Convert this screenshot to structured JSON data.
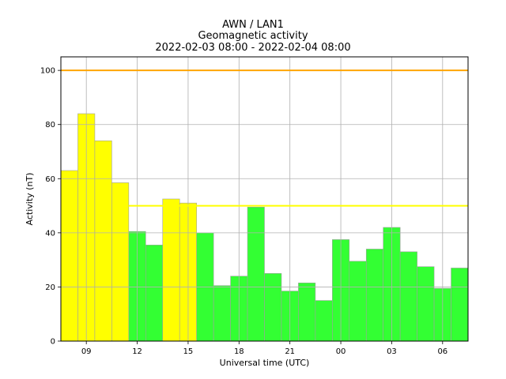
{
  "chart_data": {
    "type": "bar",
    "title": "AWN / LAN1",
    "subtitle": "Geomagnetic activity",
    "date_range": "2022-02-03 08:00 - 2022-02-04 08:00",
    "xlabel": "Universal time (UTC)",
    "ylabel": "Activity (nT)",
    "ylim": [
      0,
      105
    ],
    "yticks": [
      0,
      20,
      40,
      60,
      80,
      100
    ],
    "hours": [
      "08",
      "09",
      "10",
      "11",
      "12",
      "13",
      "14",
      "15",
      "16",
      "17",
      "18",
      "19",
      "20",
      "21",
      "22",
      "23",
      "00",
      "01",
      "02",
      "03",
      "04",
      "05",
      "06",
      "07"
    ],
    "xtick_labels": [
      "09",
      "12",
      "15",
      "18",
      "21",
      "00",
      "03",
      "06"
    ],
    "values": [
      63,
      84,
      74,
      58.5,
      40.5,
      35.5,
      52.5,
      51,
      40,
      20.5,
      24,
      49.5,
      25,
      18.5,
      21.5,
      15,
      37.5,
      29.5,
      34,
      42,
      33,
      27.5,
      19.5,
      27
    ],
    "bar_colors": [
      "#ffff00",
      "#ffff00",
      "#ffff00",
      "#ffff00",
      "#33ff33",
      "#33ff33",
      "#ffff00",
      "#ffff00",
      "#33ff33",
      "#33ff33",
      "#33ff33",
      "#33ff33",
      "#33ff33",
      "#33ff33",
      "#33ff33",
      "#33ff33",
      "#33ff33",
      "#33ff33",
      "#33ff33",
      "#33ff33",
      "#33ff33",
      "#33ff33",
      "#33ff33",
      "#33ff33"
    ],
    "thresholds": [
      {
        "value": 100,
        "color": "#ffa500",
        "from_hour_index": 0
      },
      {
        "value": 50,
        "color": "#ffff00",
        "from_hour_index": 4
      }
    ],
    "grid": true
  }
}
